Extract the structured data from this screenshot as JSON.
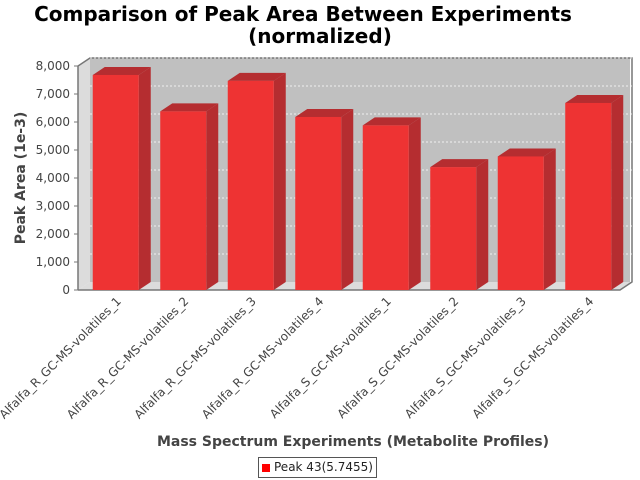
{
  "chart_data": {
    "type": "bar",
    "title_line1": "Comparison of Peak Area Between Experiments",
    "title_line2": "(normalized)",
    "xlabel": "Mass Spectrum Experiments (Metabolite Profiles)",
    "ylabel": "Peak Area (1e-3)",
    "ylim": [
      0,
      8000
    ],
    "yticks": [
      "0",
      "1,000",
      "2,000",
      "3,000",
      "4,000",
      "5,000",
      "6,000",
      "7,000",
      "8,000"
    ],
    "categories": [
      "Alfalfa_R_GC-MS-volatiles_1",
      "Alfalfa_R_GC-MS-volatiles_2",
      "Alfalfa_R_GC-MS-volatiles_3",
      "Alfalfa_R_GC-MS-volatiles_4",
      "Alfalfa_S_GC-MS-volatiles_1",
      "Alfalfa_S_GC-MS-volatiles_2",
      "Alfalfa_S_GC-MS-volatiles_3",
      "Alfalfa_S_GC-MS-volatiles_4"
    ],
    "series": [
      {
        "name": "Peak 43(5.7455)",
        "values": [
          7680,
          6380,
          7470,
          6180,
          5880,
          4390,
          4770,
          6680
        ],
        "color": "#ee3333"
      }
    ],
    "grid": true,
    "legend_position": "bottom"
  }
}
